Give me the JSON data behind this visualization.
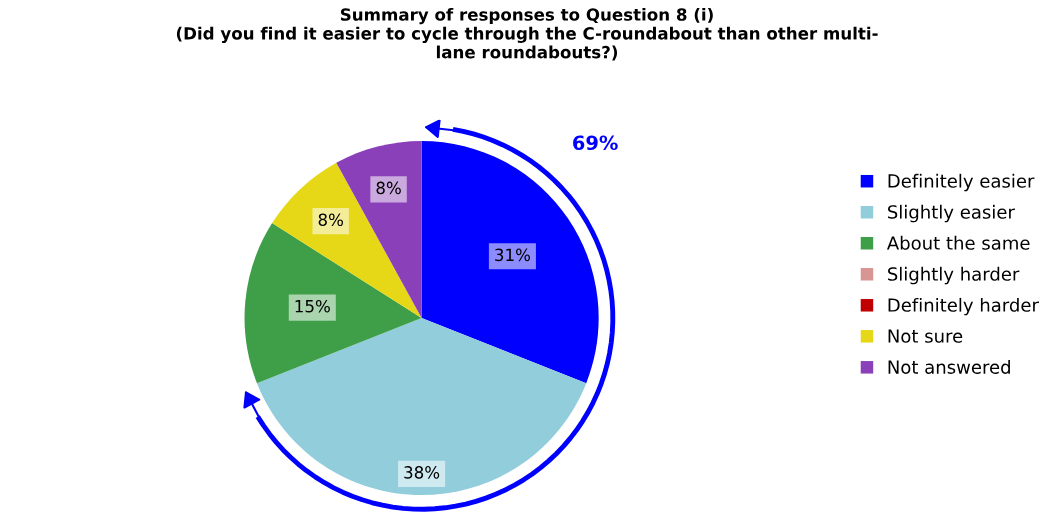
{
  "chart_data": {
    "type": "pie",
    "title": "Summary of responses to Question 8 (i)\n(Did you find it easier to cycle through the C-roundabout than other multi-\nlane roundabouts?)",
    "categories": [
      "Definitely easier",
      "Slightly easier",
      "About the same",
      "Slightly harder",
      "Definitely harder",
      "Not sure",
      "Not answered"
    ],
    "values": [
      31,
      38,
      15,
      0,
      0,
      8,
      8
    ],
    "value_labels": [
      "31%",
      "38%",
      "15%",
      null,
      null,
      "8%",
      "8%"
    ],
    "colors": [
      "#0000ff",
      "#92cddc",
      "#3f9f48",
      "#d99594",
      "#c00000",
      "#e6d817",
      "#8a40b8"
    ],
    "annotations": [
      "69%"
    ],
    "legend": "right"
  }
}
